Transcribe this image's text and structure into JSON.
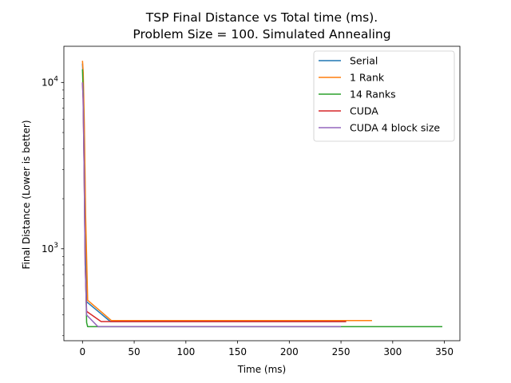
{
  "chart_data": {
    "type": "line",
    "title_line1": "TSP Final Distance vs Total time (ms).",
    "title_line2": "Problem Size = 100. Simulated Annealing",
    "xlabel": "Time (ms)",
    "ylabel": "Final Distance (Lower is better)",
    "xlim": [
      -18,
      365
    ],
    "ylim": [
      280,
      16500
    ],
    "y_scale": "log",
    "x_ticks": [
      0,
      50,
      100,
      150,
      200,
      250,
      300,
      350
    ],
    "x_tick_labels": [
      "0",
      "50",
      "100",
      "150",
      "200",
      "250",
      "300",
      "350"
    ],
    "y_ticks": [
      1000,
      10000
    ],
    "y_tick_labels": [
      "10^3",
      "10^4"
    ],
    "grid": false,
    "legend_position": "top-right",
    "series": [
      {
        "name": "Serial",
        "color": "#1f77b4",
        "x": [
          0,
          0.5,
          1.5,
          2.5,
          4,
          27,
          255
        ],
        "y": [
          13000,
          11000,
          5000,
          1500,
          480,
          365,
          365
        ]
      },
      {
        "name": "1 Rank",
        "color": "#ff7f0e",
        "x": [
          0,
          0.7,
          1.8,
          3,
          5,
          28,
          280
        ],
        "y": [
          13500,
          11500,
          5500,
          1600,
          490,
          370,
          370
        ]
      },
      {
        "name": "14 Ranks",
        "color": "#2ca02c",
        "x": [
          0,
          0.6,
          1.5,
          2.5,
          4,
          5,
          348
        ],
        "y": [
          12000,
          9000,
          3500,
          1000,
          360,
          340,
          340
        ]
      },
      {
        "name": "CUDA",
        "color": "#d62728",
        "x": [
          0,
          0.6,
          1.6,
          2.6,
          4,
          18,
          255
        ],
        "y": [
          10000,
          8000,
          3000,
          800,
          420,
          365,
          365
        ]
      },
      {
        "name": "CUDA 4 block size",
        "color": "#9467bd",
        "x": [
          0,
          0.6,
          1.6,
          2.6,
          4,
          15,
          250
        ],
        "y": [
          10000,
          8000,
          3000,
          800,
          400,
          340,
          340
        ]
      }
    ]
  }
}
